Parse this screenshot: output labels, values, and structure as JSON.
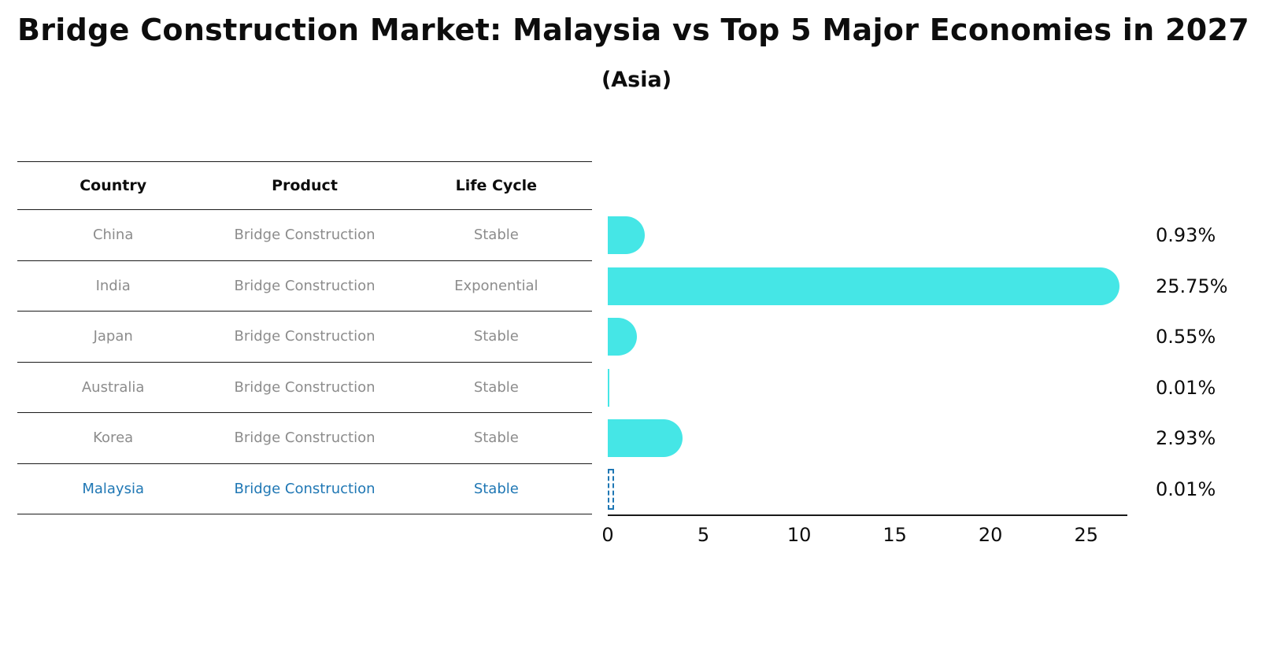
{
  "title": "Bridge Construction Market: Malaysia vs Top 5 Major Economies in 2027",
  "subtitle": "(Asia)",
  "table": {
    "headers": [
      "Country",
      "Product",
      "Life Cycle"
    ],
    "rows": [
      {
        "country": "China",
        "product": "Bridge Construction",
        "life_cycle": "Stable",
        "value": 0.93,
        "value_label": "0.93%",
        "highlight": false
      },
      {
        "country": "India",
        "product": "Bridge Construction",
        "life_cycle": "Exponential",
        "value": 25.75,
        "value_label": "25.75%",
        "highlight": false
      },
      {
        "country": "Japan",
        "product": "Bridge Construction",
        "life_cycle": "Stable",
        "value": 0.55,
        "value_label": "0.55%",
        "highlight": false
      },
      {
        "country": "Australia",
        "product": "Bridge Construction",
        "life_cycle": "Stable",
        "value": 0.01,
        "value_label": "0.01%",
        "highlight": false
      },
      {
        "country": "Korea",
        "product": "Bridge Construction",
        "life_cycle": "Stable",
        "value": 2.93,
        "value_label": "2.93%",
        "highlight": false
      },
      {
        "country": "Malaysia",
        "product": "Bridge Construction",
        "life_cycle": "Stable",
        "value": 0.01,
        "value_label": "0.01%",
        "highlight": true
      }
    ]
  },
  "chart_data": {
    "type": "bar",
    "orientation": "horizontal",
    "title": "Bridge Construction Market: Malaysia vs Top 5 Major Economies in 2027",
    "subtitle": "(Asia)",
    "categories": [
      "China",
      "India",
      "Japan",
      "Australia",
      "Korea",
      "Malaysia"
    ],
    "values": [
      0.93,
      25.75,
      0.55,
      0.01,
      2.93,
      0.01
    ],
    "value_labels": [
      "0.93%",
      "25.75%",
      "0.55%",
      "0.01%",
      "2.93%",
      "0.01%"
    ],
    "xlabel": "",
    "ylabel": "",
    "xlim": [
      0,
      27.15
    ],
    "xticks": [
      0,
      5,
      10,
      15,
      20,
      25
    ],
    "grid": false,
    "legend": "none",
    "bar_color": "#45E6E6",
    "highlight_index": 5,
    "highlight_color": "#1F77B4"
  },
  "colors": {
    "bar_cyan": "#45E6E6",
    "highlight_blue": "#1F77B4",
    "muted_text": "#8C8C8C",
    "line_black": "#1A1A1A",
    "background": "#FFFFFF"
  }
}
